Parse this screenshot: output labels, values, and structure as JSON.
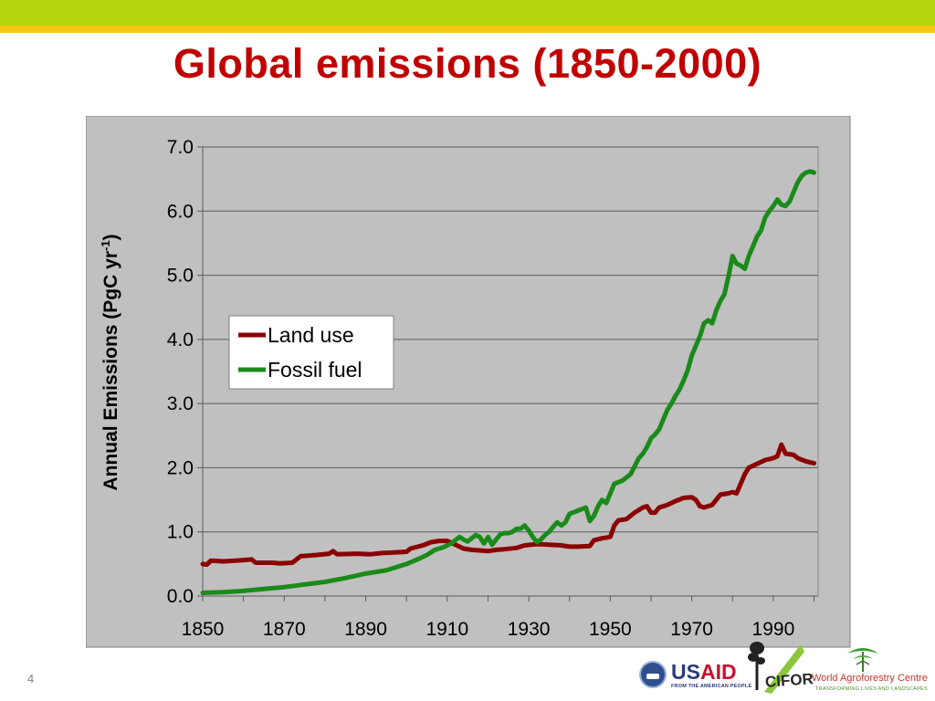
{
  "slide": {
    "title": "Global emissions (1850-2000)",
    "page_number": "4"
  },
  "logos": {
    "usaid_us": "US",
    "usaid_aid": "AID",
    "usaid_tagline": "FROM THE AMERICAN PEOPLE",
    "cifor": "CIFOR",
    "wac_name": "World Agroforestry Centre",
    "wac_tagline": "TRANSFORMING LIVES AND LANDSCAPES"
  },
  "colors": {
    "title": "#c00000",
    "band_green": "#b3d60e",
    "band_yellow": "#f6c515",
    "plot_bg": "#c0c0c0",
    "land_use": "#8b0000",
    "fossil_fuel": "#1a8a1a"
  },
  "chart_data": {
    "type": "line",
    "title": "",
    "ylabel": "Annual Emissions (PgC yr",
    "ylabel_superscript": "-1",
    "ylabel_suffix": ")",
    "xlabel": "",
    "xlim": [
      1850,
      2001
    ],
    "ylim": [
      0,
      7
    ],
    "grid": true,
    "legend_position": "left-middle",
    "x_ticks": [
      "1850",
      "1870",
      "1890",
      "1910",
      "1930",
      "1950",
      "1970",
      "1990"
    ],
    "y_ticks": [
      "0.0",
      "1.0",
      "2.0",
      "3.0",
      "4.0",
      "5.0",
      "6.0",
      "7.0"
    ],
    "series": [
      {
        "name": "Land use",
        "color": "#8b0000",
        "points": [
          [
            1850,
            0.5
          ],
          [
            1851,
            0.49
          ],
          [
            1852,
            0.55
          ],
          [
            1855,
            0.54
          ],
          [
            1858,
            0.55
          ],
          [
            1860,
            0.56
          ],
          [
            1862,
            0.57
          ],
          [
            1863,
            0.52
          ],
          [
            1867,
            0.52
          ],
          [
            1869,
            0.51
          ],
          [
            1872,
            0.52
          ],
          [
            1874,
            0.62
          ],
          [
            1878,
            0.64
          ],
          [
            1881,
            0.66
          ],
          [
            1882,
            0.7
          ],
          [
            1883,
            0.65
          ],
          [
            1888,
            0.66
          ],
          [
            1891,
            0.65
          ],
          [
            1894,
            0.67
          ],
          [
            1897,
            0.68
          ],
          [
            1900,
            0.69
          ],
          [
            1901,
            0.74
          ],
          [
            1904,
            0.79
          ],
          [
            1906,
            0.84
          ],
          [
            1908,
            0.86
          ],
          [
            1910,
            0.86
          ],
          [
            1912,
            0.8
          ],
          [
            1914,
            0.74
          ],
          [
            1916,
            0.72
          ],
          [
            1920,
            0.7
          ],
          [
            1922,
            0.72
          ],
          [
            1924,
            0.73
          ],
          [
            1927,
            0.75
          ],
          [
            1929,
            0.79
          ],
          [
            1932,
            0.81
          ],
          [
            1935,
            0.8
          ],
          [
            1938,
            0.79
          ],
          [
            1940,
            0.77
          ],
          [
            1942,
            0.77
          ],
          [
            1945,
            0.78
          ],
          [
            1946,
            0.87
          ],
          [
            1948,
            0.9
          ],
          [
            1950,
            0.92
          ],
          [
            1951,
            1.1
          ],
          [
            1952,
            1.18
          ],
          [
            1954,
            1.2
          ],
          [
            1956,
            1.3
          ],
          [
            1958,
            1.38
          ],
          [
            1959,
            1.4
          ],
          [
            1960,
            1.3
          ],
          [
            1961,
            1.3
          ],
          [
            1962,
            1.38
          ],
          [
            1964,
            1.42
          ],
          [
            1966,
            1.48
          ],
          [
            1968,
            1.53
          ],
          [
            1970,
            1.54
          ],
          [
            1971,
            1.5
          ],
          [
            1972,
            1.4
          ],
          [
            1973,
            1.38
          ],
          [
            1975,
            1.42
          ],
          [
            1977,
            1.58
          ],
          [
            1979,
            1.6
          ],
          [
            1980,
            1.62
          ],
          [
            1981,
            1.6
          ],
          [
            1982,
            1.75
          ],
          [
            1983,
            1.9
          ],
          [
            1984,
            2.0
          ],
          [
            1986,
            2.06
          ],
          [
            1988,
            2.12
          ],
          [
            1990,
            2.15
          ],
          [
            1991,
            2.18
          ],
          [
            1992,
            2.36
          ],
          [
            1993,
            2.22
          ],
          [
            1995,
            2.2
          ],
          [
            1996,
            2.15
          ],
          [
            1998,
            2.1
          ],
          [
            2000,
            2.07
          ]
        ]
      },
      {
        "name": "Fossil fuel",
        "color": "#1a8a1a",
        "points": [
          [
            1850,
            0.05
          ],
          [
            1855,
            0.06
          ],
          [
            1860,
            0.08
          ],
          [
            1865,
            0.11
          ],
          [
            1870,
            0.14
          ],
          [
            1875,
            0.18
          ],
          [
            1880,
            0.22
          ],
          [
            1885,
            0.28
          ],
          [
            1890,
            0.35
          ],
          [
            1895,
            0.4
          ],
          [
            1900,
            0.5
          ],
          [
            1903,
            0.58
          ],
          [
            1905,
            0.64
          ],
          [
            1907,
            0.72
          ],
          [
            1909,
            0.76
          ],
          [
            1911,
            0.82
          ],
          [
            1913,
            0.92
          ],
          [
            1914,
            0.88
          ],
          [
            1915,
            0.85
          ],
          [
            1916,
            0.9
          ],
          [
            1917,
            0.95
          ],
          [
            1918,
            0.92
          ],
          [
            1919,
            0.82
          ],
          [
            1920,
            0.92
          ],
          [
            1921,
            0.8
          ],
          [
            1922,
            0.88
          ],
          [
            1923,
            0.96
          ],
          [
            1924,
            0.98
          ],
          [
            1925,
            0.98
          ],
          [
            1926,
            1.0
          ],
          [
            1927,
            1.05
          ],
          [
            1928,
            1.05
          ],
          [
            1929,
            1.1
          ],
          [
            1930,
            1.02
          ],
          [
            1931,
            0.92
          ],
          [
            1932,
            0.84
          ],
          [
            1933,
            0.88
          ],
          [
            1934,
            0.95
          ],
          [
            1935,
            1.0
          ],
          [
            1936,
            1.08
          ],
          [
            1937,
            1.15
          ],
          [
            1938,
            1.1
          ],
          [
            1939,
            1.15
          ],
          [
            1940,
            1.28
          ],
          [
            1942,
            1.33
          ],
          [
            1944,
            1.38
          ],
          [
            1945,
            1.17
          ],
          [
            1946,
            1.25
          ],
          [
            1947,
            1.4
          ],
          [
            1948,
            1.5
          ],
          [
            1949,
            1.45
          ],
          [
            1950,
            1.6
          ],
          [
            1951,
            1.75
          ],
          [
            1953,
            1.8
          ],
          [
            1955,
            1.9
          ],
          [
            1957,
            2.15
          ],
          [
            1958,
            2.22
          ],
          [
            1959,
            2.32
          ],
          [
            1960,
            2.46
          ],
          [
            1961,
            2.52
          ],
          [
            1962,
            2.6
          ],
          [
            1963,
            2.75
          ],
          [
            1964,
            2.9
          ],
          [
            1965,
            3.0
          ],
          [
            1966,
            3.12
          ],
          [
            1967,
            3.22
          ],
          [
            1968,
            3.36
          ],
          [
            1969,
            3.52
          ],
          [
            1970,
            3.75
          ],
          [
            1971,
            3.9
          ],
          [
            1972,
            4.05
          ],
          [
            1973,
            4.25
          ],
          [
            1974,
            4.3
          ],
          [
            1975,
            4.25
          ],
          [
            1976,
            4.45
          ],
          [
            1977,
            4.6
          ],
          [
            1978,
            4.7
          ],
          [
            1979,
            4.98
          ],
          [
            1980,
            5.3
          ],
          [
            1981,
            5.18
          ],
          [
            1982,
            5.15
          ],
          [
            1983,
            5.1
          ],
          [
            1984,
            5.3
          ],
          [
            1985,
            5.45
          ],
          [
            1986,
            5.6
          ],
          [
            1987,
            5.7
          ],
          [
            1988,
            5.9
          ],
          [
            1989,
            6.0
          ],
          [
            1990,
            6.08
          ],
          [
            1991,
            6.18
          ],
          [
            1992,
            6.1
          ],
          [
            1993,
            6.08
          ],
          [
            1994,
            6.15
          ],
          [
            1995,
            6.3
          ],
          [
            1996,
            6.45
          ],
          [
            1997,
            6.55
          ],
          [
            1998,
            6.6
          ],
          [
            1999,
            6.62
          ],
          [
            2000,
            6.6
          ]
        ]
      }
    ]
  }
}
